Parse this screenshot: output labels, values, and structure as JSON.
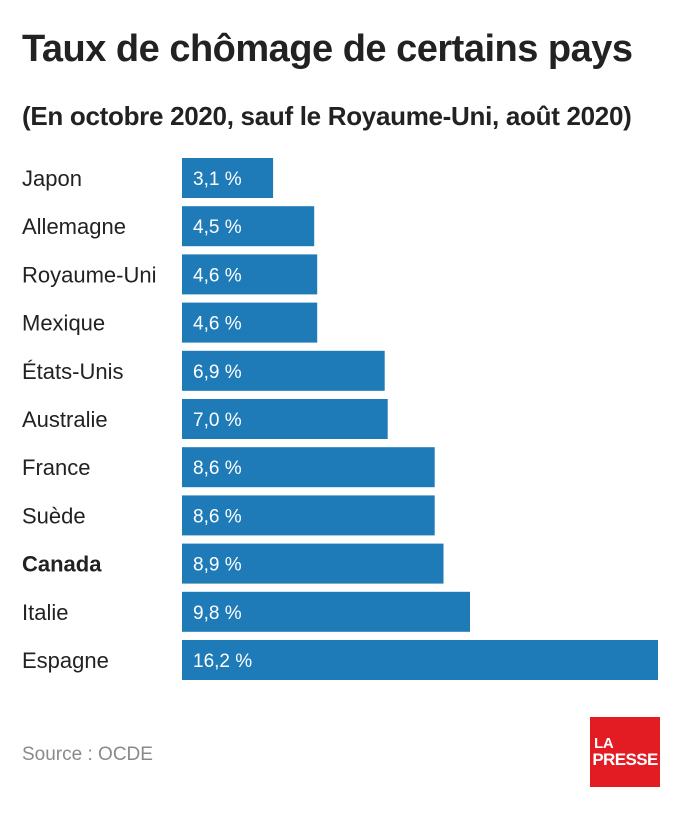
{
  "header": {
    "title": "Taux de chômage de certains pays",
    "subtitle": "(En octobre 2020, sauf le Royaume-Uni, août 2020)"
  },
  "chart_data": {
    "type": "bar",
    "orientation": "horizontal",
    "categories": [
      "Japon",
      "Allemagne",
      "Royaume-Uni",
      "Mexique",
      "États-Unis",
      "Australie",
      "France",
      "Suède",
      "Canada",
      "Italie",
      "Espagne"
    ],
    "values": [
      3.1,
      4.5,
      4.6,
      4.6,
      6.9,
      7.0,
      8.6,
      8.6,
      8.9,
      9.8,
      16.2
    ],
    "value_labels": [
      "3,1 %",
      "4,5 %",
      "4,6 %",
      "4,6 %",
      "6,9 %",
      "7,0 %",
      "8,6 %",
      "8,6 %",
      "8,9 %",
      "9,8 %",
      "16,2 %"
    ],
    "highlight": "Canada",
    "bar_color": "#1f7bb8",
    "xlim": [
      0,
      16.2
    ],
    "grid": false
  },
  "footer": {
    "source": "Source : OCDE",
    "logo_line1": "LA",
    "logo_line2": "PRESSE",
    "logo_color": "#e31b23"
  }
}
